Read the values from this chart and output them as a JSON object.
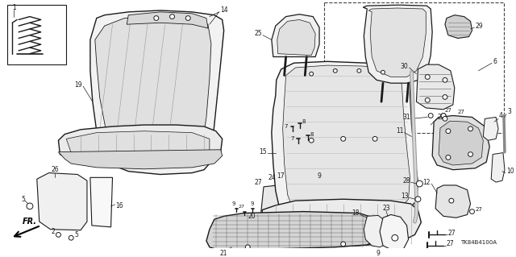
{
  "background_color": "#ffffff",
  "line_color": "#1a1a1a",
  "text_color": "#1a1a1a",
  "fig_width": 6.4,
  "fig_height": 3.19,
  "part_code": "TK84B4100A"
}
